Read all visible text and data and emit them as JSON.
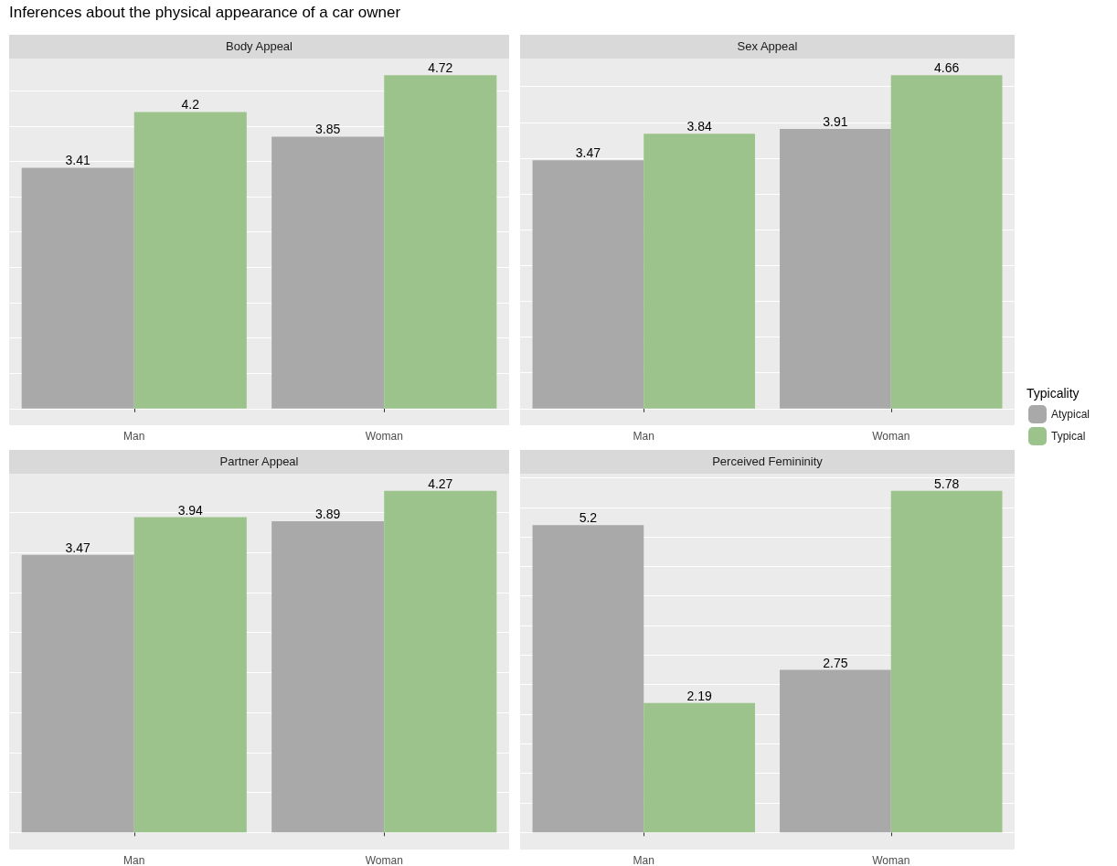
{
  "chart_data": [
    {
      "type": "bar",
      "title": "Body Appeal",
      "annotations": [
        "Inferences about the physical appearance of a car owner"
      ],
      "categories": [
        "Man",
        "Woman"
      ],
      "series": [
        {
          "color": "#a9a9a9",
          "values": [
            3.41,
            3.85
          ]
        },
        {
          "color": "#9bc38b",
          "values": [
            4.2,
            4.72
          ]
        }
      ],
      "ylim": [
        -0.236,
        4.956
      ],
      "yticks": [
        {
          "value": 0,
          "label": null
        },
        {
          "value": 0.5,
          "label": null
        },
        {
          "value": 1,
          "label": null
        },
        {
          "value": 1.5,
          "label": null
        },
        {
          "value": 2,
          "label": null
        },
        {
          "value": 2.5,
          "label": null
        },
        {
          "value": 3,
          "label": null
        },
        {
          "value": 3.5,
          "label": null
        },
        {
          "value": 4,
          "label": null
        },
        {
          "value": 4.5,
          "label": null
        }
      ],
      "grid": "y",
      "data_labels": true,
      "tick_labels": "x"
    },
    {
      "type": "bar",
      "title": "Sex Appeal",
      "legend_title": "Typicality",
      "legend": "right",
      "categories": [
        "Man",
        "Woman"
      ],
      "series": [
        {
          "name": "Atypical",
          "color": "#a9a9a9",
          "values": [
            3.47,
            3.91
          ]
        },
        {
          "name": "Typical",
          "color": "#9bc38b",
          "values": [
            3.84,
            4.66
          ]
        }
      ],
      "ylim": [
        -0.233,
        4.893
      ],
      "yticks": [
        {
          "value": 0,
          "label": null
        },
        {
          "value": 0.5,
          "label": null
        },
        {
          "value": 1,
          "label": null
        },
        {
          "value": 1.5,
          "label": null
        },
        {
          "value": 2,
          "label": null
        },
        {
          "value": 2.5,
          "label": null
        },
        {
          "value": 3,
          "label": null
        },
        {
          "value": 3.5,
          "label": null
        },
        {
          "value": 4,
          "label": null
        },
        {
          "value": 4.5,
          "label": null
        }
      ],
      "grid": "y",
      "data_labels": true,
      "tick_labels": "x"
    },
    {
      "type": "bar",
      "title": "Partner Appeal",
      "categories": [
        "Man",
        "Woman"
      ],
      "series": [
        {
          "color": "#a9a9a9",
          "values": [
            3.47,
            3.89
          ]
        },
        {
          "color": "#9bc38b",
          "values": [
            3.94,
            4.27
          ]
        }
      ],
      "ylim": [
        -0.2135,
        4.4835
      ],
      "yticks": [
        {
          "value": 0,
          "label": null
        },
        {
          "value": 0.5,
          "label": null
        },
        {
          "value": 1,
          "label": null
        },
        {
          "value": 1.5,
          "label": null
        },
        {
          "value": 2,
          "label": null
        },
        {
          "value": 2.5,
          "label": null
        },
        {
          "value": 3,
          "label": null
        },
        {
          "value": 3.5,
          "label": null
        },
        {
          "value": 4,
          "label": null
        }
      ],
      "grid": "y",
      "data_labels": true,
      "tick_labels": "x"
    },
    {
      "type": "bar",
      "title": "Perceived Femininity",
      "categories": [
        "Man",
        "Woman"
      ],
      "series": [
        {
          "color": "#a9a9a9",
          "values": [
            5.2,
            2.75
          ]
        },
        {
          "color": "#9bc38b",
          "values": [
            2.19,
            5.78
          ]
        }
      ],
      "ylim": [
        -0.289,
        6.069
      ],
      "yticks": [
        {
          "value": 0,
          "label": null
        },
        {
          "value": 0.5,
          "label": null
        },
        {
          "value": 1,
          "label": null
        },
        {
          "value": 1.5,
          "label": null
        },
        {
          "value": 2,
          "label": null
        },
        {
          "value": 2.5,
          "label": null
        },
        {
          "value": 3,
          "label": null
        },
        {
          "value": 3.5,
          "label": null
        },
        {
          "value": 4,
          "label": null
        },
        {
          "value": 4.5,
          "label": null
        },
        {
          "value": 5,
          "label": null
        },
        {
          "value": 5.5,
          "label": null
        },
        {
          "value": 6,
          "label": null
        }
      ],
      "grid": "y",
      "data_labels": true,
      "tick_labels": "x"
    }
  ]
}
